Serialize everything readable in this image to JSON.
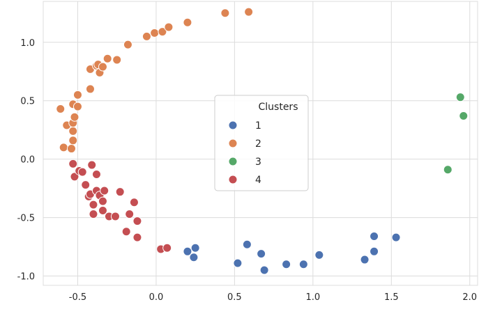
{
  "chart_data": {
    "type": "scatter",
    "title": "",
    "xlabel": "",
    "ylabel": "",
    "xlim": [
      -0.72,
      2.05
    ],
    "ylim": [
      -1.08,
      1.35
    ],
    "xticks": [
      "-0.5",
      "0.0",
      "0.5",
      "1.0",
      "1.5",
      "2.0"
    ],
    "xtick_values": [
      -0.5,
      0.0,
      0.5,
      1.0,
      1.5,
      2.0
    ],
    "yticks": [
      "-1.0",
      "-0.5",
      "0.0",
      "0.5",
      "1.0"
    ],
    "ytick_values": [
      -1.0,
      -0.5,
      0.0,
      0.5,
      1.0
    ],
    "grid": true,
    "legend": {
      "title": "Clusters",
      "placement": "center"
    },
    "series": [
      {
        "name": "1",
        "color": "#4c72b0",
        "points": [
          [
            0.2,
            -0.79
          ],
          [
            0.25,
            -0.76
          ],
          [
            0.24,
            -0.84
          ],
          [
            0.52,
            -0.89
          ],
          [
            0.58,
            -0.73
          ],
          [
            0.67,
            -0.81
          ],
          [
            0.69,
            -0.95
          ],
          [
            0.83,
            -0.9
          ],
          [
            0.94,
            -0.9
          ],
          [
            1.04,
            -0.82
          ],
          [
            1.33,
            -0.86
          ],
          [
            1.39,
            -0.66
          ],
          [
            1.39,
            -0.79
          ],
          [
            1.53,
            -0.67
          ]
        ]
      },
      {
        "name": "2",
        "color": "#dd8452",
        "points": [
          [
            -0.61,
            0.43
          ],
          [
            -0.59,
            0.1
          ],
          [
            -0.57,
            0.29
          ],
          [
            -0.54,
            0.09
          ],
          [
            -0.53,
            0.16
          ],
          [
            -0.53,
            0.24
          ],
          [
            -0.53,
            0.31
          ],
          [
            -0.52,
            0.36
          ],
          [
            -0.53,
            0.47
          ],
          [
            -0.5,
            0.45
          ],
          [
            -0.5,
            0.55
          ],
          [
            -0.42,
            0.6
          ],
          [
            -0.42,
            0.77
          ],
          [
            -0.38,
            0.8
          ],
          [
            -0.37,
            0.81
          ],
          [
            -0.36,
            0.74
          ],
          [
            -0.34,
            0.79
          ],
          [
            -0.31,
            0.86
          ],
          [
            -0.25,
            0.85
          ],
          [
            -0.18,
            0.98
          ],
          [
            -0.06,
            1.05
          ],
          [
            -0.01,
            1.08
          ],
          [
            0.04,
            1.09
          ],
          [
            0.08,
            1.13
          ],
          [
            0.2,
            1.17
          ],
          [
            0.44,
            1.25
          ],
          [
            0.59,
            1.26
          ]
        ]
      },
      {
        "name": "3",
        "color": "#55a868",
        "points": [
          [
            1.86,
            -0.09
          ],
          [
            1.94,
            0.53
          ],
          [
            1.96,
            0.37
          ]
        ]
      },
      {
        "name": "4",
        "color": "#c44e52",
        "points": [
          [
            -0.53,
            -0.04
          ],
          [
            -0.52,
            -0.15
          ],
          [
            -0.49,
            -0.1
          ],
          [
            -0.47,
            -0.11
          ],
          [
            -0.45,
            -0.22
          ],
          [
            -0.43,
            -0.32
          ],
          [
            -0.42,
            -0.3
          ],
          [
            -0.41,
            -0.05
          ],
          [
            -0.4,
            -0.39
          ],
          [
            -0.4,
            -0.47
          ],
          [
            -0.38,
            -0.13
          ],
          [
            -0.38,
            -0.27
          ],
          [
            -0.36,
            -0.31
          ],
          [
            -0.34,
            -0.44
          ],
          [
            -0.34,
            -0.36
          ],
          [
            -0.33,
            -0.27
          ],
          [
            -0.3,
            -0.49
          ],
          [
            -0.26,
            -0.49
          ],
          [
            -0.23,
            -0.28
          ],
          [
            -0.19,
            -0.62
          ],
          [
            -0.17,
            -0.47
          ],
          [
            -0.14,
            -0.37
          ],
          [
            -0.12,
            -0.53
          ],
          [
            -0.12,
            -0.67
          ],
          [
            0.03,
            -0.77
          ],
          [
            0.07,
            -0.76
          ]
        ]
      }
    ]
  }
}
